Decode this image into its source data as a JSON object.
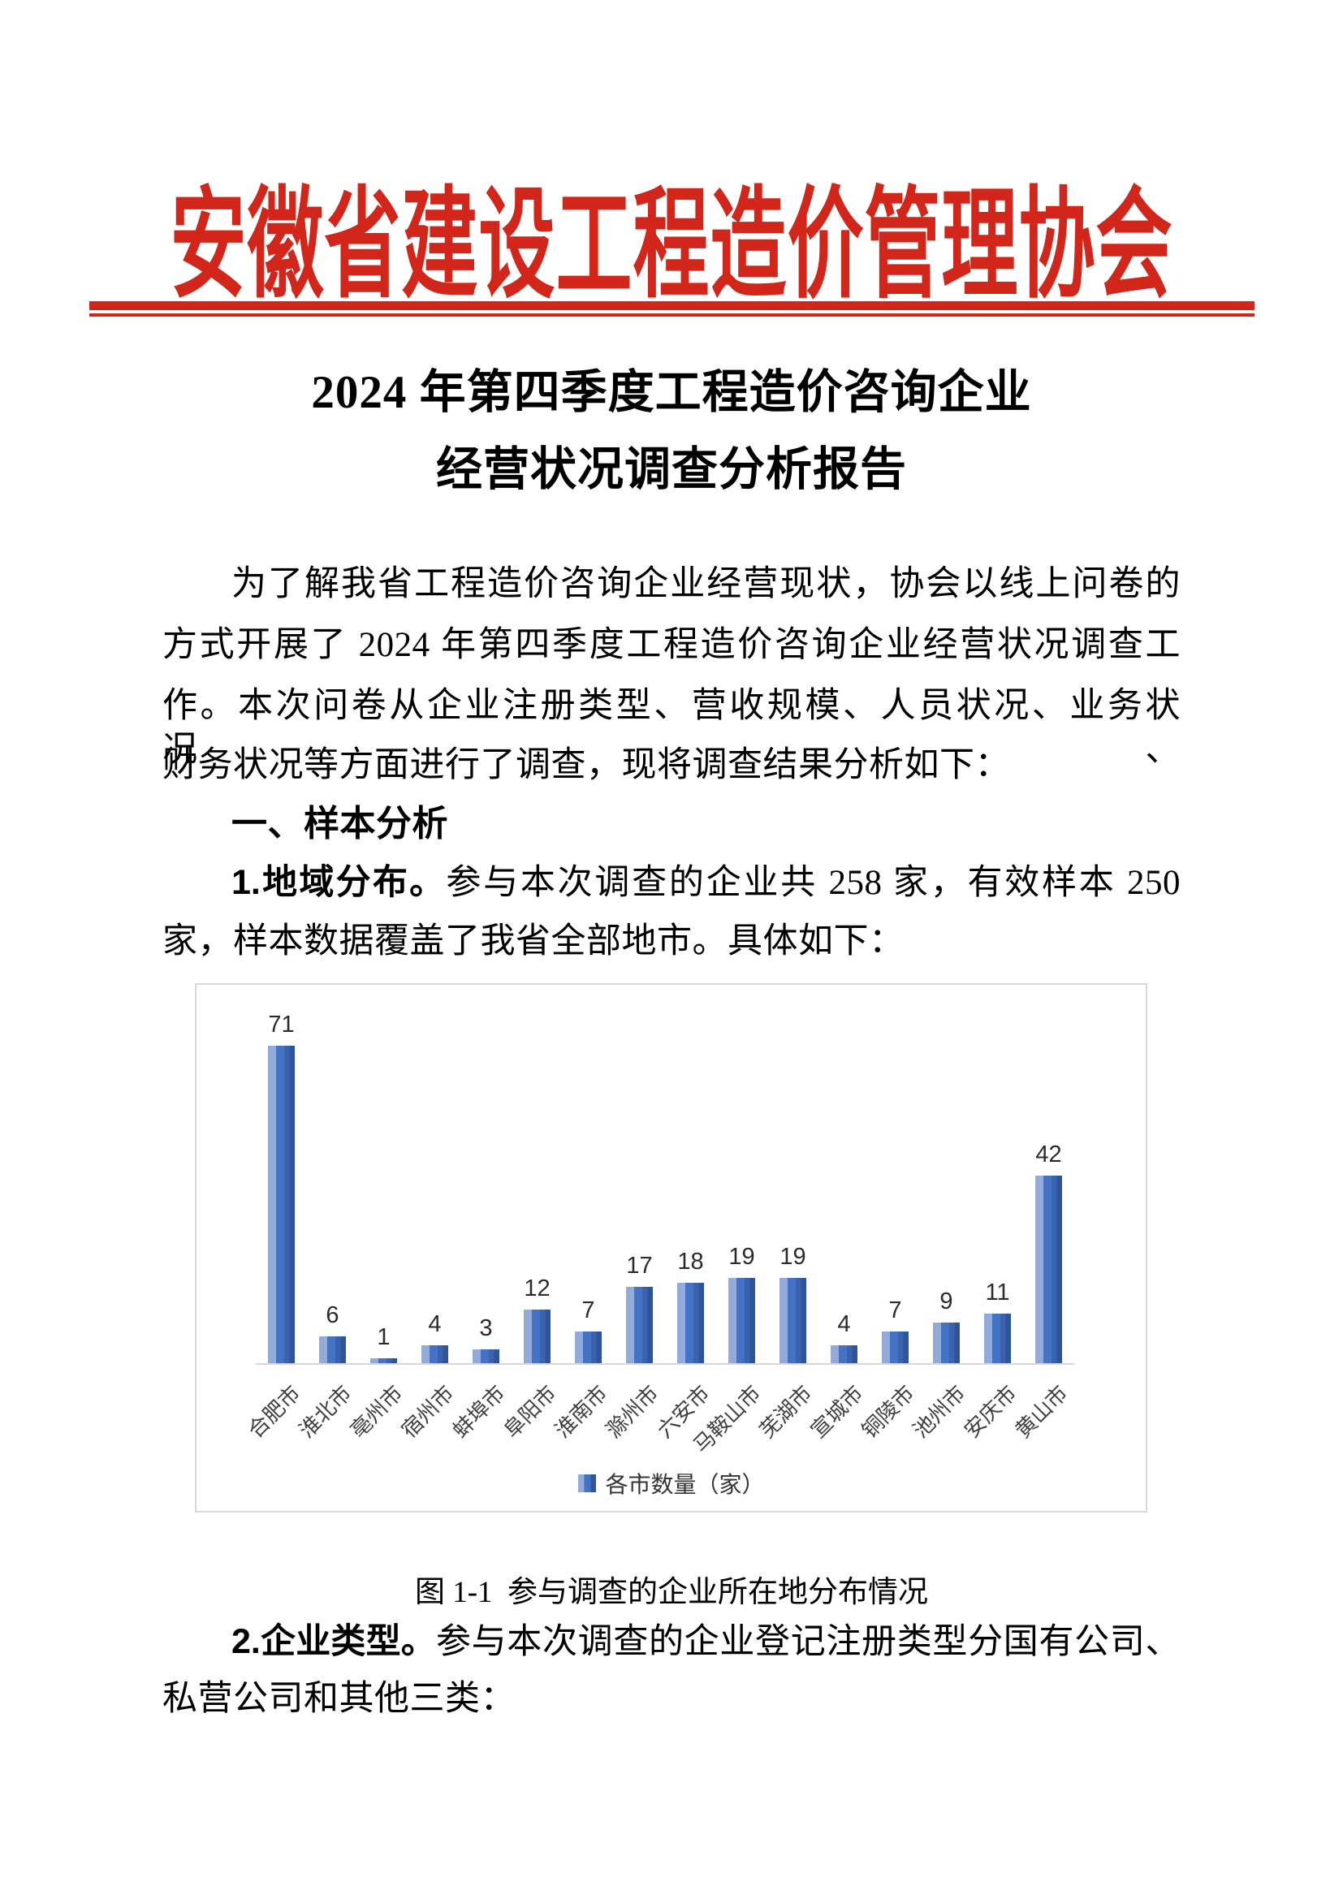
{
  "colors": {
    "accent_red": "#d3261b",
    "bar_light": "#92abdb",
    "bar_mid": "#4472c4",
    "bar_dark": "#2e549a",
    "axis_line": "#d9d9d9",
    "chart_border": "#d9d9d9"
  },
  "header": {
    "org_name": "安徽省建设工程造价管理协会"
  },
  "title": {
    "line1": "2024 年第四季度工程造价咨询企业",
    "line2": "经营状况调查分析报告"
  },
  "content": {
    "intro_line1": "为了解我省工程造价咨询企业经营现状，协会以线上问卷的",
    "intro_line2": "方式开展了 2024 年第四季度工程造价咨询企业经营状况调查工",
    "intro_line3": "作。本次问卷从企业注册类型、营收规模、人员状况、业务状况、",
    "intro_line4": "财务状况等方面进行了调查，现将调查结果分析如下：",
    "section1_heading": "一、样本分析",
    "item1_bold": "1.地域分布。",
    "item1_rest": "参与本次调查的企业共 258 家，有效样本 250",
    "item1_line2": "家，样本数据覆盖了我省全部地市。具体如下：",
    "item2_bold": "2.企业类型。",
    "item2_rest": "参与本次调查的企业登记注册类型分国有公司、",
    "item2_line2": "私营公司和其他三类："
  },
  "figure": {
    "caption": "图 1-1  参与调查的企业所在地分布情况",
    "legend_label": "各市数量（家）"
  },
  "chart_data": {
    "type": "bar",
    "title": "",
    "xlabel": "",
    "ylabel": "",
    "categories": [
      "合肥市",
      "淮北市",
      "亳州市",
      "宿州市",
      "蚌埠市",
      "阜阳市",
      "淮南市",
      "滁州市",
      "六安市",
      "马鞍山市",
      "芜湖市",
      "宣城市",
      "铜陵市",
      "池州市",
      "安庆市",
      "黄山市"
    ],
    "series": [
      {
        "name": "各市数量（家）",
        "values": [
          71,
          6,
          1,
          4,
          3,
          12,
          7,
          17,
          18,
          19,
          19,
          4,
          7,
          9,
          11,
          42
        ]
      }
    ],
    "ylim": [
      0,
      75
    ],
    "grid": false,
    "data_labels": true,
    "legend_position": "bottom-center",
    "x_tick_rotation": -45
  }
}
